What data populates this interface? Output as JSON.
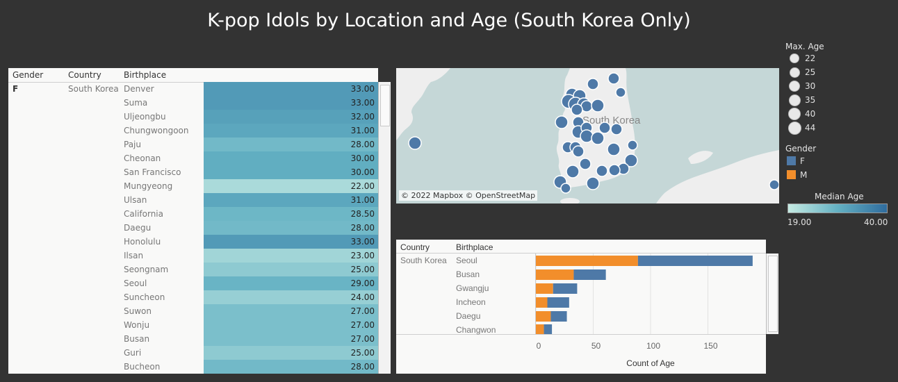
{
  "title": "K-pop Idols by Location and Age (South Korea Only)",
  "colors": {
    "female": "#4e79a7",
    "male": "#f28e2b",
    "panel_bg": "#f9f9f8",
    "page_bg": "#333333",
    "map_water": "#c5d7d7",
    "map_land": "#eeeeee"
  },
  "chart_data": [
    {
      "type": "table",
      "columns": [
        "Gender",
        "Country",
        "Birthplace"
      ],
      "gender": "F",
      "country": "South Korea",
      "rows": [
        {
          "birthplace": "Denver",
          "median_age": "33.00"
        },
        {
          "birthplace": "Suma",
          "median_age": "33.00"
        },
        {
          "birthplace": "Uljeongbu",
          "median_age": "32.00"
        },
        {
          "birthplace": "Chungwongoon",
          "median_age": "31.00"
        },
        {
          "birthplace": "Paju",
          "median_age": "28.00"
        },
        {
          "birthplace": "Cheonan",
          "median_age": "30.00"
        },
        {
          "birthplace": "San Francisco",
          "median_age": "30.00"
        },
        {
          "birthplace": "Mungyeong",
          "median_age": "22.00"
        },
        {
          "birthplace": "Ulsan",
          "median_age": "31.00"
        },
        {
          "birthplace": "California",
          "median_age": "28.50"
        },
        {
          "birthplace": "Daegu",
          "median_age": "28.00"
        },
        {
          "birthplace": "Honolulu",
          "median_age": "33.00"
        },
        {
          "birthplace": "Ilsan",
          "median_age": "23.00"
        },
        {
          "birthplace": "Seongnam",
          "median_age": "25.00"
        },
        {
          "birthplace": "Seoul",
          "median_age": "29.00"
        },
        {
          "birthplace": "Suncheon",
          "median_age": "24.00"
        },
        {
          "birthplace": "Suwon",
          "median_age": "27.00"
        },
        {
          "birthplace": "Wonju",
          "median_age": "27.00"
        },
        {
          "birthplace": "Busan",
          "median_age": "27.00"
        },
        {
          "birthplace": "Guri",
          "median_age": "25.00"
        },
        {
          "birthplace": "Bucheon",
          "median_age": "28.00"
        }
      ],
      "color_scale": {
        "min": 19,
        "max": 40
      }
    },
    {
      "type": "scatter",
      "map_credit": "© 2022 Mapbox © OpenStreetMap",
      "map_labels": [
        "South Korea"
      ]
    },
    {
      "type": "bar",
      "columns": [
        "Country",
        "Birthplace"
      ],
      "country": "South Korea",
      "categories": [
        "Seoul",
        "Busan",
        "Gwangju",
        "Incheon",
        "Daegu",
        "Changwon"
      ],
      "series": [
        {
          "name": "M",
          "values": [
            89,
            33,
            15,
            10,
            13,
            7
          ]
        },
        {
          "name": "F",
          "values": [
            100,
            28,
            21,
            19,
            14,
            7
          ]
        }
      ],
      "xlabel": "Count of Age",
      "xticks": [
        0,
        50,
        100,
        150
      ],
      "xlim": [
        0,
        190
      ]
    }
  ],
  "legends": {
    "max_age": {
      "title": "Max. Age",
      "items": [
        "22",
        "25",
        "30",
        "35",
        "40",
        "44"
      ]
    },
    "gender": {
      "title": "Gender",
      "items": [
        "F",
        "M"
      ]
    },
    "median_age": {
      "title": "Median Age",
      "min_label": "19.00",
      "max_label": "40.00"
    }
  }
}
